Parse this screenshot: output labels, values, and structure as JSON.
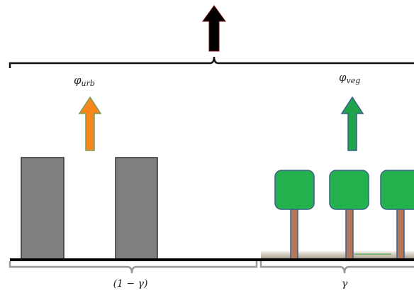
{
  "flux_urban": {
    "symbol": "φ",
    "subscript": "urb"
  },
  "flux_vegetation": {
    "symbol": "φ",
    "subscript": "veg"
  },
  "fraction_urban": "(1 − γ)",
  "fraction_vegetation": "γ"
}
